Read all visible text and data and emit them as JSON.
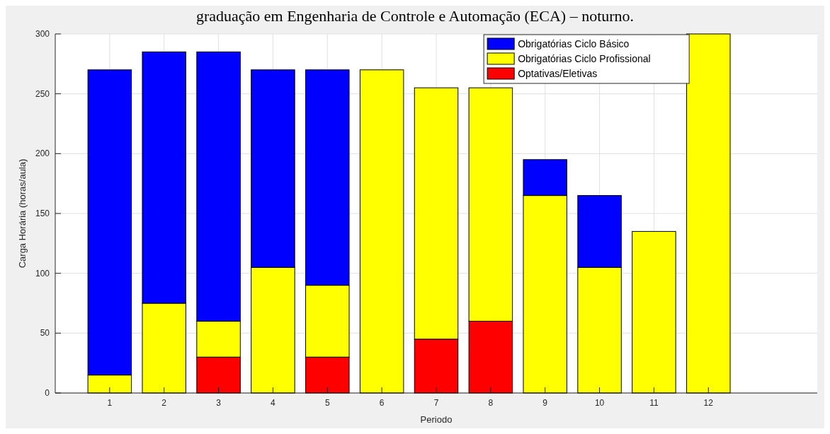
{
  "chart_data": {
    "type": "bar",
    "title": "graduação em Engenharia de Controle e Automação (ECA) – noturno.",
    "xlabel": "Periodo",
    "ylabel": "Carga Horária (horas/aula)",
    "x": [
      1,
      2,
      3,
      4,
      5,
      6,
      7,
      8,
      9,
      10,
      11,
      12
    ],
    "xlim": [
      0,
      14
    ],
    "xticks": [
      1,
      2,
      3,
      4,
      5,
      6,
      7,
      8,
      9,
      10,
      11,
      12
    ],
    "ylim": [
      0,
      300
    ],
    "yticks": [
      0,
      50,
      100,
      150,
      200,
      250,
      300
    ],
    "stacked": true,
    "grid": true,
    "legend": "top right",
    "series": [
      {
        "name": "Optativas/Eletivas",
        "color": "#ff0000",
        "values": [
          0,
          0,
          30,
          0,
          30,
          0,
          45,
          60,
          0,
          0,
          0,
          0
        ]
      },
      {
        "name": "Obrigatórias Ciclo Profissional",
        "color": "#ffff00",
        "values": [
          15,
          75,
          30,
          105,
          60,
          270,
          210,
          195,
          165,
          105,
          135,
          300
        ]
      },
      {
        "name": "Obrigatórias Ciclo Básico",
        "color": "#0000ff",
        "values": [
          255,
          210,
          225,
          165,
          180,
          0,
          0,
          0,
          30,
          60,
          0,
          0
        ]
      }
    ]
  }
}
